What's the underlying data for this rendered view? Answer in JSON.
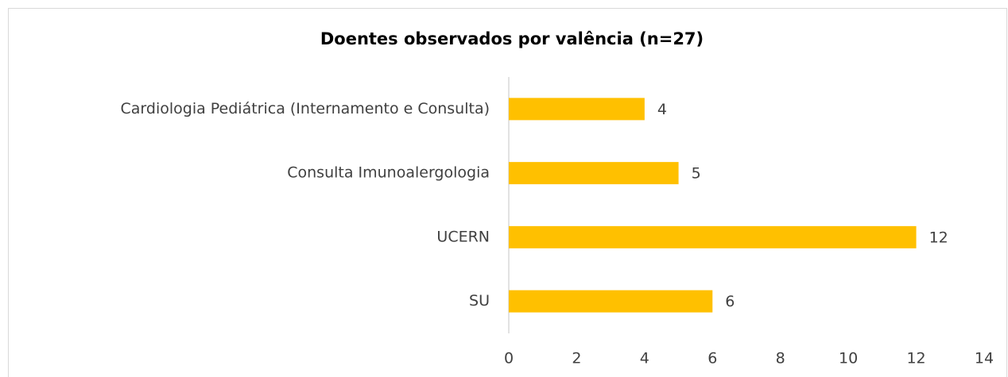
{
  "chart_data": {
    "type": "bar",
    "orientation": "horizontal",
    "title": "Doentes observados por valência (n=27)",
    "categories": [
      "Cardiologia Pediátrica (Internamento e Consulta)",
      "Consulta Imunoalergologia",
      "UCERN",
      "SU"
    ],
    "values": [
      4,
      5,
      12,
      6
    ],
    "color": "#ffc000",
    "xlim": [
      0,
      14
    ],
    "xticks": [
      0,
      2,
      4,
      6,
      8,
      10,
      12,
      14
    ],
    "grid": false
  }
}
